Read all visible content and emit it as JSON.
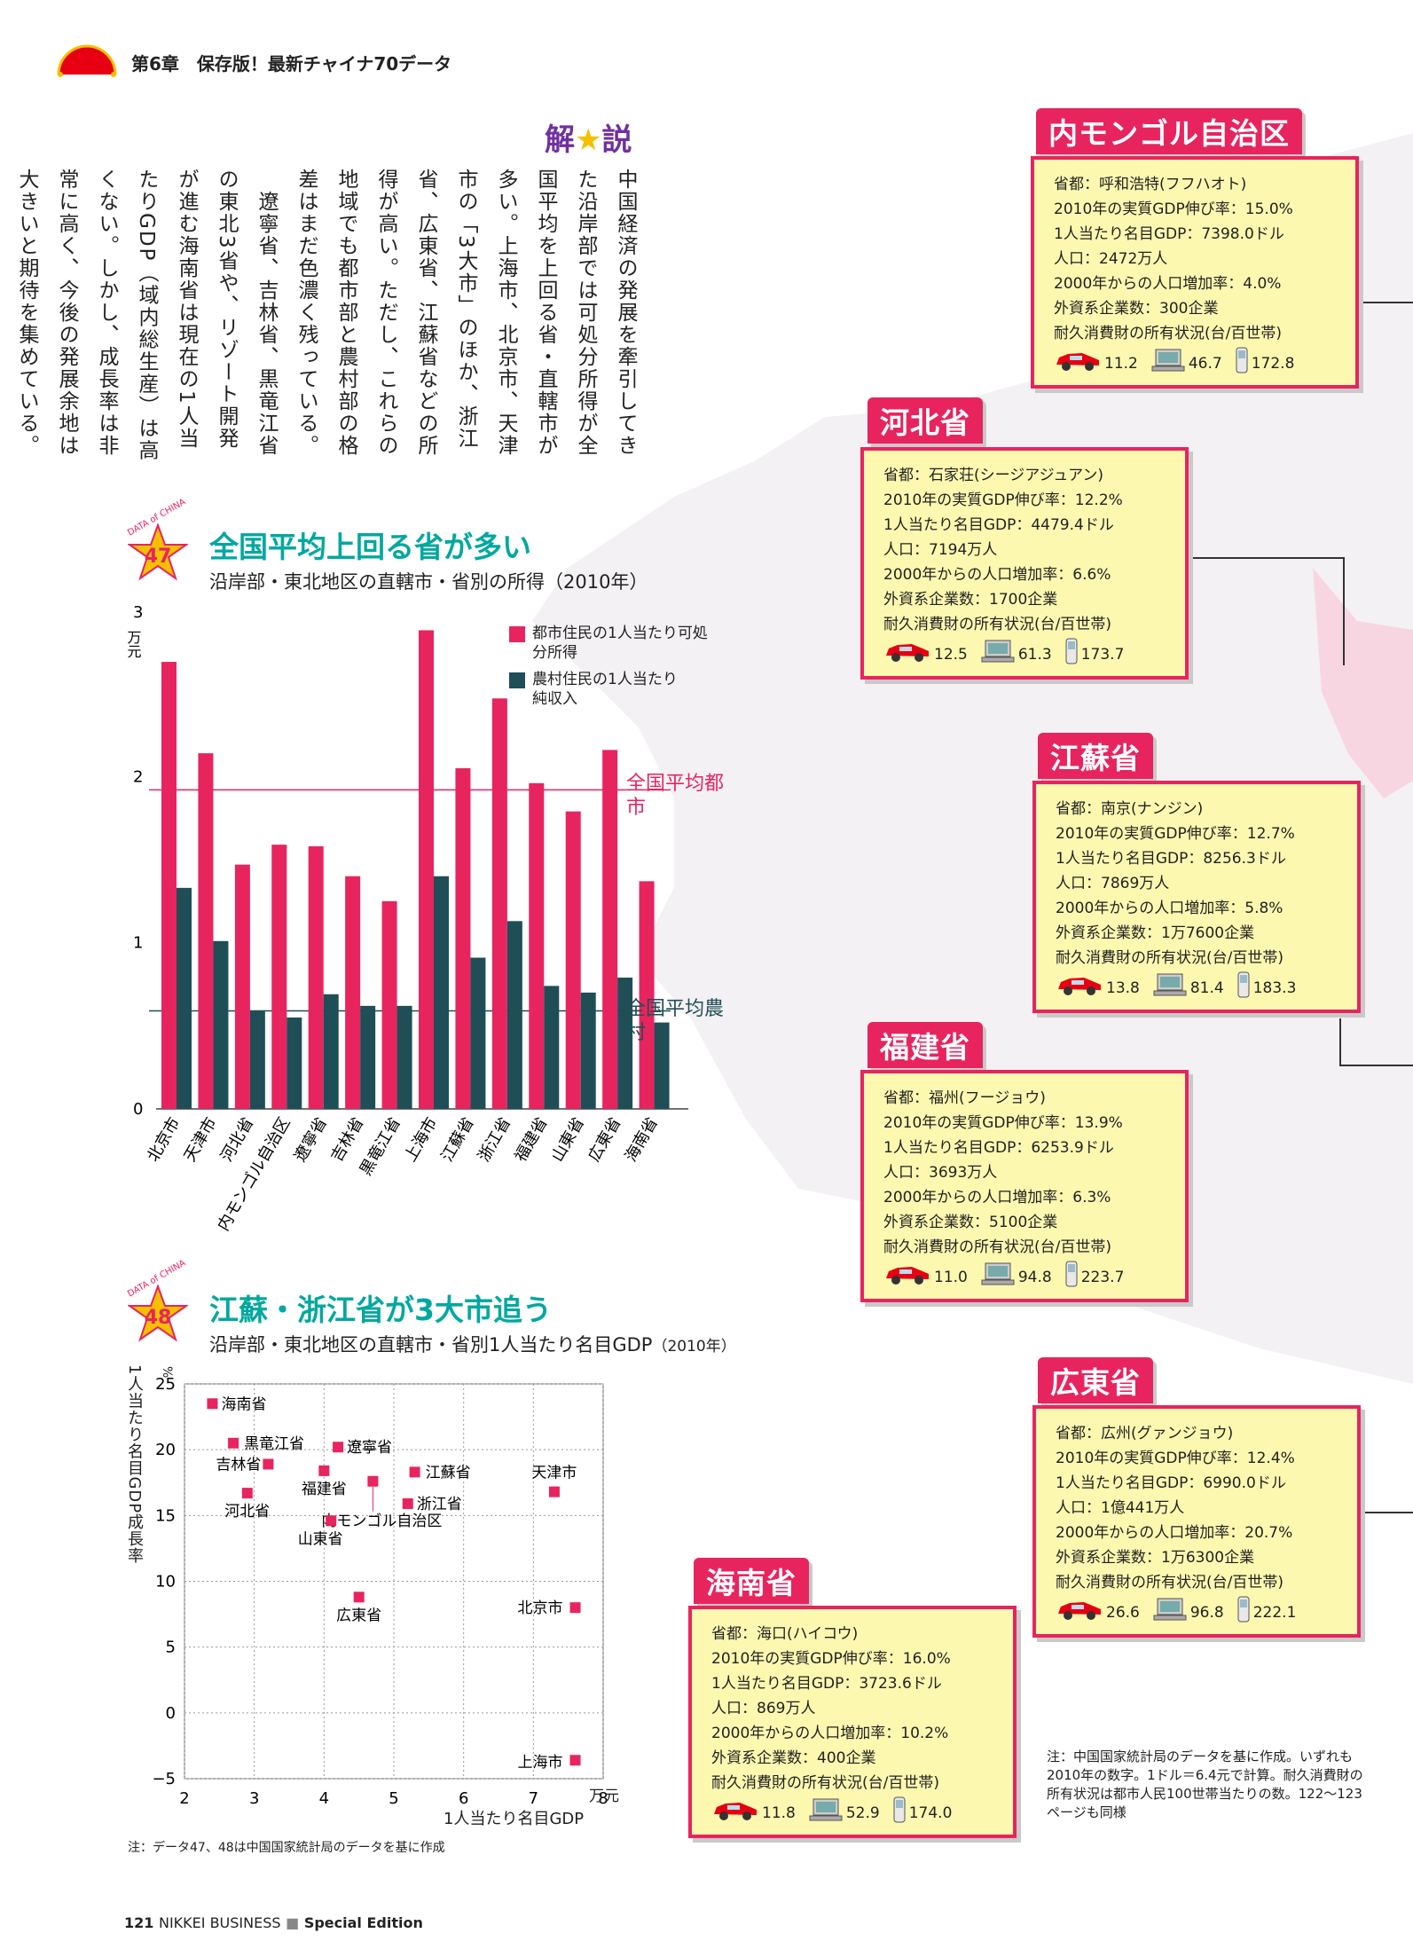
{
  "header": {
    "text": "第6章　保存版！最新チャイナ70データ"
  },
  "footer": {
    "page": "121",
    "publication": "NIKKEI BUSINESS",
    "edition": "Special Edition"
  },
  "commentary": {
    "title_left": "解",
    "title_right": "説",
    "body": "中国経済の発展を牽引してきた沿岸部では可処分所得が全国平均を上回る省・直轄市が多い。上海市、北京市、天津市の「3大市」のほか、浙江省、広東省、江蘇省などの所得が高い。ただし、これらの地域でも都市部と農村部の格差はまだ色濃く残っている。\n　遼寧省、吉林省、黒竜江省の東北3省や、リゾート開発が進む海南省は現在の1人当たりGDP（域内総生産）は高くない。しかし、成長率は非常に高く、今後の発展余地は大きいと期待を集めている。"
  },
  "chart47": {
    "badge_text": "DATA of CHINA",
    "number": "47",
    "title": "全国平均上回る省が多い",
    "subtitle": "沿岸部・東北地区の直轄市・省別の所得（2010年）",
    "unit": "万元",
    "legend_urban": "都市住民の1人当たり可処分所得",
    "legend_rural": "農村住民の1人当たり純収入",
    "avg_urban_label": "全国平均都市",
    "avg_rural_label": "全国平均農村"
  },
  "chart48": {
    "badge_text": "DATA of CHINA",
    "number": "48",
    "title": "江蘇・浙江省が3大市追う",
    "subtitle": "沿岸部・東北地区の直轄市・省別1人当たり名目GDP",
    "subtitle_year": "（2010年）",
    "ylabel": "1人当たり名目GDP成長率",
    "xlabel": "1人当たり名目GDP",
    "x_unit": "万元",
    "y_unit": "%"
  },
  "chart_data": [
    {
      "type": "bar",
      "categories": [
        "北京市",
        "天津市",
        "河北省",
        "内モンゴル自治区",
        "遼寧省",
        "吉林省",
        "黒竜江省",
        "上海市",
        "江蘇省",
        "浙江省",
        "福建省",
        "山東省",
        "広東省",
        "海南省"
      ],
      "series": [
        {
          "name": "都市住民の1人当たり可処分所得",
          "values": [
            2.69,
            2.14,
            1.47,
            1.59,
            1.58,
            1.4,
            1.25,
            2.88,
            2.05,
            2.47,
            1.96,
            1.79,
            2.16,
            1.37
          ],
          "color": "#e8245e"
        },
        {
          "name": "農村住民の1人当たり純収入",
          "values": [
            1.33,
            1.01,
            0.59,
            0.55,
            0.69,
            0.62,
            0.62,
            1.4,
            0.91,
            1.13,
            0.74,
            0.7,
            0.79,
            0.52
          ],
          "color": "#1f4e57"
        }
      ],
      "reference_lines": [
        {
          "label": "全国平均都市",
          "value": 1.92,
          "color": "#e8245e"
        },
        {
          "label": "全国平均農村",
          "value": 0.59,
          "color": "#1f4e57"
        }
      ],
      "ylim": [
        0,
        3
      ],
      "yticks": [
        "0",
        "1",
        "2",
        "3"
      ],
      "ylabel": "万元"
    },
    {
      "type": "scatter",
      "points": [
        {
          "label": "海南省",
          "x": 2.4,
          "y": 23.5
        },
        {
          "label": "黒竜江省",
          "x": 2.7,
          "y": 20.5
        },
        {
          "label": "吉林省",
          "x": 3.2,
          "y": 18.9
        },
        {
          "label": "遼寧省",
          "x": 4.2,
          "y": 20.2
        },
        {
          "label": "福建省",
          "x": 4.0,
          "y": 18.4
        },
        {
          "label": "江蘇省",
          "x": 5.3,
          "y": 18.3
        },
        {
          "label": "天津市",
          "x": 7.3,
          "y": 16.8
        },
        {
          "label": "河北省",
          "x": 2.9,
          "y": 16.7
        },
        {
          "label": "内モンゴル自治区",
          "x": 4.7,
          "y": 17.6
        },
        {
          "label": "浙江省",
          "x": 5.2,
          "y": 15.9
        },
        {
          "label": "山東省",
          "x": 4.1,
          "y": 14.6
        },
        {
          "label": "広東省",
          "x": 4.5,
          "y": 8.8
        },
        {
          "label": "北京市",
          "x": 7.6,
          "y": 8.0
        },
        {
          "label": "上海市",
          "x": 7.6,
          "y": -3.6
        }
      ],
      "xlim": [
        2,
        8
      ],
      "ylim": [
        -5,
        25
      ],
      "xticks": [
        "2",
        "3",
        "4",
        "5",
        "6",
        "7",
        "8"
      ],
      "yticks": [
        "−5",
        "0",
        "5",
        "10",
        "15",
        "20",
        "25"
      ],
      "xlabel": "1人当たり名目GDP",
      "ylabel": "1人当たり名目GDP成長率",
      "grid": true
    }
  ],
  "labels": {
    "capital": "省都：",
    "gdp_growth": "2010年の実質GDP伸び率：",
    "gdp_per_capita": "1人当たり名目GDP：",
    "population": "人口：",
    "pop_growth": "2000年からの人口増加率：",
    "foreign": "外資系企業数：",
    "ownership": "耐久消費財の所有状況(台/百世帯)"
  },
  "provinces": [
    {
      "name": "内モンゴル自治区",
      "capital": "呼和浩特(フフハオト)",
      "gdp_growth": "15.0%",
      "gdp_per_capita": "7398.0ドル",
      "population": "2472万人",
      "pop_growth": "4.0%",
      "foreign": "300企業",
      "car": "11.2",
      "pc": "46.7",
      "phone": "172.8"
    },
    {
      "name": "河北省",
      "capital": "石家荘(シージアジュアン)",
      "gdp_growth": "12.2%",
      "gdp_per_capita": "4479.4ドル",
      "population": "7194万人",
      "pop_growth": "6.6%",
      "foreign": "1700企業",
      "car": "12.5",
      "pc": "61.3",
      "phone": "173.7"
    },
    {
      "name": "江蘇省",
      "capital": "南京(ナンジン)",
      "gdp_growth": "12.7%",
      "gdp_per_capita": "8256.3ドル",
      "population": "7869万人",
      "pop_growth": "5.8%",
      "foreign": "1万7600企業",
      "car": "13.8",
      "pc": "81.4",
      "phone": "183.3"
    },
    {
      "name": "福建省",
      "capital": "福州(フージョウ)",
      "gdp_growth": "13.9%",
      "gdp_per_capita": "6253.9ドル",
      "population": "3693万人",
      "pop_growth": "6.3%",
      "foreign": "5100企業",
      "car": "11.0",
      "pc": "94.8",
      "phone": "223.7"
    },
    {
      "name": "広東省",
      "capital": "広州(グァンジョウ)",
      "gdp_growth": "12.4%",
      "gdp_per_capita": "6990.0ドル",
      "population": "1億441万人",
      "pop_growth": "20.7%",
      "foreign": "1万6300企業",
      "car": "26.6",
      "pc": "96.8",
      "phone": "222.1"
    },
    {
      "name": "海南省",
      "capital": "海口(ハイコウ)",
      "gdp_growth": "16.0%",
      "gdp_per_capita": "3723.6ドル",
      "population": "869万人",
      "pop_growth": "10.2%",
      "foreign": "400企業",
      "car": "11.8",
      "pc": "52.9",
      "phone": "174.0"
    }
  ],
  "notes": {
    "chart_note": "注：データ47、48は中国国家統計局のデータを基に作成",
    "card_note": "注：中国国家統計局のデータを基に作成。いずれも2010年の数字。1ドル＝6.4元で計算。耐久消費財の所有状況は都市人民100世帯当たりの数。122〜123ページも同様"
  },
  "colors": {
    "accent_pink": "#e8245e",
    "rural_teal": "#1f4e57",
    "title_teal": "#00a8a0",
    "card_bg": "#fdf8b0",
    "kaisetsu_purple": "#7030a0"
  },
  "icons": [
    "car-icon",
    "computer-icon",
    "mobile-phone-icon",
    "star-badge-icon",
    "fan-logo-icon"
  ]
}
